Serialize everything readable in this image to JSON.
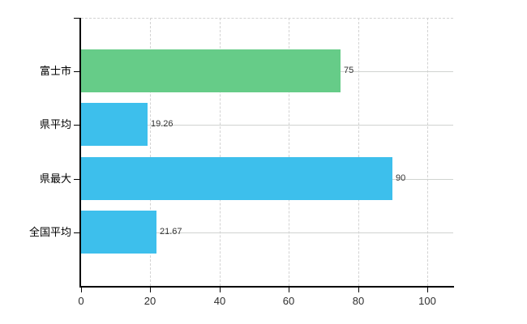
{
  "chart_data": {
    "type": "bar",
    "orientation": "horizontal",
    "title": "",
    "xlabel": "",
    "ylabel": "",
    "categories": [
      "富士市",
      "県平均",
      "県最大",
      "全国平均"
    ],
    "values": [
      75,
      19.26,
      90,
      21.67
    ],
    "value_labels": [
      "75",
      "19.26",
      "90",
      "21.67"
    ],
    "series_colors": [
      "#66cc88",
      "#3dbfec",
      "#3dbfec",
      "#3dbfec"
    ],
    "x_ticks": [
      "0",
      "20",
      "40",
      "60",
      "80",
      "100"
    ],
    "x_tick_values": [
      0,
      20,
      40,
      60,
      80,
      100
    ],
    "xlim": [
      0,
      107.5
    ],
    "grid": "on",
    "legend_position": "none"
  },
  "style_colors": {
    "bar_green": "#66cc88",
    "bar_blue": "#3dbfec",
    "grid_line": "#d2d2d2",
    "grid_line_horizontal": "#d0d3d0",
    "axis_line": "#000000",
    "tick_text": "#2e2e2e",
    "category_text": "#000000",
    "value_text": "#333333",
    "background": "#ffffff"
  }
}
